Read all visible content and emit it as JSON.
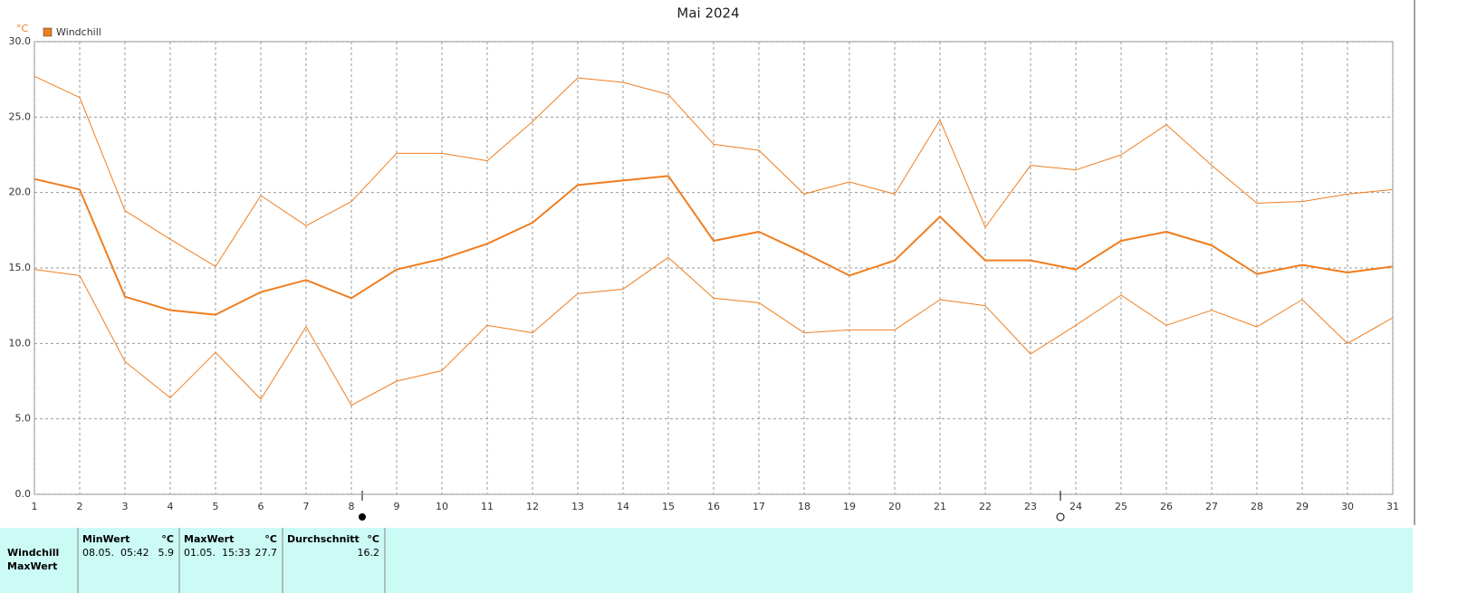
{
  "chart_data": {
    "type": "line",
    "title": "Mai 2024",
    "y_unit": "°C",
    "x": [
      1,
      2,
      3,
      4,
      5,
      6,
      7,
      8,
      9,
      10,
      11,
      12,
      13,
      14,
      15,
      16,
      17,
      18,
      19,
      20,
      21,
      22,
      23,
      24,
      25,
      26,
      27,
      28,
      29,
      30,
      31
    ],
    "xlim": [
      1,
      31
    ],
    "ylim": [
      0,
      30
    ],
    "yticks": [
      {
        "value": 0,
        "label": "0.0"
      },
      {
        "value": 5,
        "label": "5.0"
      },
      {
        "value": 10,
        "label": "10.0"
      },
      {
        "value": 15,
        "label": "15.0"
      },
      {
        "value": 20,
        "label": "20.0"
      },
      {
        "value": 25,
        "label": "25.0"
      },
      {
        "value": 30,
        "label": "30.0"
      }
    ],
    "grid": true,
    "legend": "top-left",
    "series": [
      {
        "name": "Windchill",
        "color": "#f07d1e",
        "width": 2,
        "values": [
          20.9,
          20.2,
          13.1,
          12.2,
          11.9,
          13.4,
          14.2,
          13.0,
          14.9,
          15.6,
          16.6,
          18.0,
          20.5,
          20.8,
          21.1,
          16.8,
          17.4,
          16.0,
          14.5,
          15.5,
          18.4,
          15.5,
          15.5,
          14.9,
          16.8,
          17.4,
          16.5,
          14.6,
          15.2,
          14.7,
          15.1
        ]
      },
      {
        "color": "#f07d1e",
        "width": 1,
        "values": [
          27.7,
          26.3,
          18.8,
          16.9,
          15.1,
          19.8,
          17.8,
          19.4,
          22.6,
          22.6,
          22.1,
          24.7,
          27.6,
          27.3,
          26.5,
          23.2,
          22.8,
          19.9,
          20.7,
          19.9,
          24.8,
          17.7,
          21.8,
          21.5,
          22.5,
          24.5,
          21.8,
          19.3,
          19.4,
          19.9,
          20.2
        ]
      },
      {
        "color": "#f07d1e",
        "width": 1,
        "values": [
          14.9,
          14.5,
          8.8,
          6.4,
          9.4,
          6.3,
          11.1,
          5.9,
          7.5,
          8.2,
          11.2,
          10.7,
          13.3,
          13.6,
          15.7,
          13.0,
          12.7,
          10.7,
          10.9,
          10.9,
          12.9,
          12.5,
          9.3,
          11.2,
          13.2,
          11.2,
          12.2,
          11.1,
          12.9,
          10.0,
          11.7
        ]
      }
    ]
  },
  "table": {
    "headers": [
      [
        "MinWert",
        "°C"
      ],
      [
        "MaxWert",
        "°C"
      ],
      [
        "Durchschnitt",
        "°C"
      ]
    ],
    "rows": [
      {
        "label": "Windchill",
        "cells": [
          [
            "08.05.  05:42",
            "5.9"
          ],
          [
            "01.05.  15:33",
            "27.7"
          ],
          [
            "16.2"
          ]
        ]
      },
      {
        "label": "MaxWert"
      }
    ]
  }
}
